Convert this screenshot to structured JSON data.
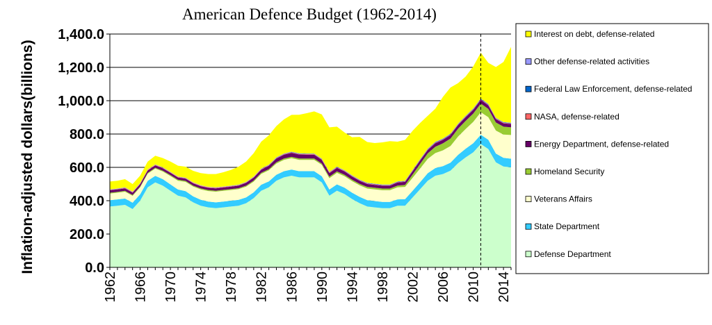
{
  "chart_data": {
    "type": "area",
    "stacked": true,
    "title": "American Defence Budget (1962-2014)",
    "xlabel": "",
    "ylabel": "Inflation-adjusted  dollars(billions)",
    "ylim": [
      0,
      1400
    ],
    "yticks": [
      "1,400.0",
      "1,200.0",
      "1,000.0",
      "800.0",
      "600.0",
      "400.0",
      "200.0",
      "0.0"
    ],
    "ytick_values": [
      1400,
      1200,
      1000,
      800,
      600,
      400,
      200,
      0
    ],
    "xticks": [
      "1962",
      "1966",
      "1970",
      "1974",
      "1978",
      "1982",
      "1986",
      "1990",
      "1994",
      "1998",
      "2002",
      "2006",
      "2010",
      "2014"
    ],
    "xtick_values": [
      1962,
      1966,
      1970,
      1974,
      1978,
      1982,
      1986,
      1990,
      1994,
      1998,
      2002,
      2006,
      2010,
      2014
    ],
    "xlim": [
      1962,
      2015
    ],
    "marker_year": 2011,
    "grid": "horizontal",
    "legend_position": "right",
    "x": [
      1962,
      1963,
      1964,
      1965,
      1966,
      1967,
      1968,
      1969,
      1970,
      1971,
      1972,
      1973,
      1974,
      1975,
      1976,
      1977,
      1978,
      1979,
      1980,
      1981,
      1982,
      1983,
      1984,
      1985,
      1986,
      1987,
      1988,
      1989,
      1990,
      1991,
      1992,
      1993,
      1994,
      1995,
      1996,
      1997,
      1998,
      1999,
      2000,
      2001,
      2002,
      2003,
      2004,
      2005,
      2006,
      2007,
      2008,
      2009,
      2010,
      2011,
      2012,
      2013,
      2014,
      2015
    ],
    "series": [
      {
        "name": "Defense Department",
        "color": "#ccffcc",
        "values": [
          365,
          370,
          375,
          350,
          400,
          480,
          510,
          490,
          460,
          430,
          420,
          390,
          370,
          360,
          355,
          360,
          365,
          370,
          385,
          415,
          460,
          480,
          520,
          540,
          550,
          540,
          540,
          540,
          510,
          430,
          460,
          440,
          410,
          385,
          365,
          360,
          355,
          355,
          370,
          370,
          420,
          470,
          520,
          550,
          560,
          580,
          625,
          660,
          690,
          740,
          710,
          630,
          605,
          600
        ]
      },
      {
        "name": "State Department",
        "color": "#33ccff",
        "values": [
          38,
          38,
          38,
          38,
          38,
          39,
          39,
          39,
          38,
          37,
          37,
          36,
          36,
          35,
          35,
          35,
          35,
          35,
          35,
          35,
          36,
          36,
          36,
          37,
          37,
          37,
          37,
          37,
          37,
          37,
          38,
          38,
          38,
          38,
          38,
          38,
          38,
          38,
          38,
          39,
          40,
          42,
          45,
          46,
          47,
          48,
          50,
          52,
          55,
          56,
          56,
          53,
          52,
          52
        ]
      },
      {
        "name": "Veterans Affairs",
        "color": "#ffffcc",
        "values": [
          40,
          40,
          41,
          41,
          42,
          43,
          44,
          46,
          50,
          53,
          56,
          59,
          62,
          63,
          64,
          64,
          64,
          64,
          64,
          64,
          65,
          66,
          67,
          68,
          68,
          68,
          68,
          68,
          68,
          68,
          69,
          69,
          69,
          69,
          70,
          70,
          70,
          70,
          72,
          74,
          78,
          82,
          86,
          90,
          95,
          100,
          110,
          118,
          128,
          135,
          135,
          138,
          140,
          142
        ]
      },
      {
        "name": "Homeland Security",
        "color": "#99cc33",
        "values": [
          5,
          5,
          5,
          5,
          5,
          5,
          5,
          5,
          6,
          6,
          6,
          6,
          6,
          6,
          6,
          6,
          6,
          6,
          7,
          7,
          7,
          7,
          8,
          8,
          8,
          8,
          8,
          8,
          8,
          9,
          9,
          9,
          9,
          9,
          10,
          10,
          10,
          10,
          11,
          12,
          20,
          28,
          33,
          38,
          42,
          45,
          47,
          49,
          50,
          52,
          50,
          48,
          47,
          46
        ]
      },
      {
        "name": "Energy Department, defense-related",
        "color": "#660066",
        "values": [
          15,
          15,
          15,
          14,
          14,
          14,
          14,
          14,
          13,
          13,
          13,
          13,
          13,
          13,
          14,
          14,
          14,
          15,
          16,
          17,
          18,
          20,
          22,
          23,
          24,
          24,
          23,
          23,
          22,
          22,
          21,
          20,
          19,
          18,
          17,
          17,
          17,
          17,
          18,
          18,
          19,
          20,
          20,
          21,
          21,
          21,
          22,
          22,
          22,
          22,
          21,
          20,
          20,
          20
        ]
      },
      {
        "name": "NASA, defense-related",
        "color": "#ff6666",
        "values": [
          2,
          2,
          3,
          3,
          3,
          3,
          3,
          3,
          3,
          3,
          3,
          3,
          3,
          3,
          3,
          3,
          3,
          3,
          3,
          3,
          3,
          3,
          3,
          3,
          3,
          3,
          3,
          3,
          3,
          3,
          3,
          3,
          3,
          3,
          3,
          3,
          3,
          3,
          3,
          3,
          3,
          3,
          3,
          3,
          3,
          3,
          3,
          3,
          3,
          3,
          3,
          3,
          3,
          3
        ]
      },
      {
        "name": "Federal Law Enforcement, defense-related",
        "color": "#0066cc",
        "values": [
          1,
          1,
          1,
          1,
          1,
          1,
          1,
          1,
          1,
          1,
          1,
          1,
          1,
          1,
          1,
          1,
          1,
          1,
          1,
          1,
          2,
          2,
          2,
          2,
          2,
          2,
          2,
          2,
          2,
          2,
          2,
          2,
          2,
          2,
          2,
          2,
          2,
          2,
          2,
          2,
          3,
          3,
          3,
          3,
          3,
          3,
          3,
          3,
          3,
          3,
          3,
          3,
          3,
          3
        ]
      },
      {
        "name": "Other defense-related activities",
        "color": "#9999ff",
        "values": [
          2,
          2,
          2,
          2,
          2,
          2,
          2,
          2,
          2,
          2,
          2,
          2,
          2,
          2,
          2,
          2,
          2,
          2,
          2,
          2,
          2,
          2,
          2,
          2,
          2,
          2,
          2,
          2,
          2,
          2,
          2,
          2,
          2,
          2,
          2,
          2,
          2,
          2,
          2,
          2,
          2,
          2,
          2,
          2,
          2,
          2,
          2,
          2,
          2,
          2,
          2,
          2,
          2,
          2
        ]
      },
      {
        "name": "Interest on debt, defense-related",
        "color": "#ffff00",
        "values": [
          47,
          47,
          49,
          46,
          45,
          47,
          52,
          56,
          62,
          65,
          66,
          69,
          73,
          77,
          80,
          86,
          95,
          108,
          122,
          141,
          161,
          176,
          188,
          205,
          221,
          232,
          242,
          253,
          266,
          267,
          240,
          226,
          229,
          257,
          245,
          244,
          253,
          260,
          238,
          245,
          235,
          217,
          197,
          199,
          250,
          277,
          243,
          236,
          252,
          275,
          247,
          305,
          360,
          455
        ]
      }
    ]
  }
}
